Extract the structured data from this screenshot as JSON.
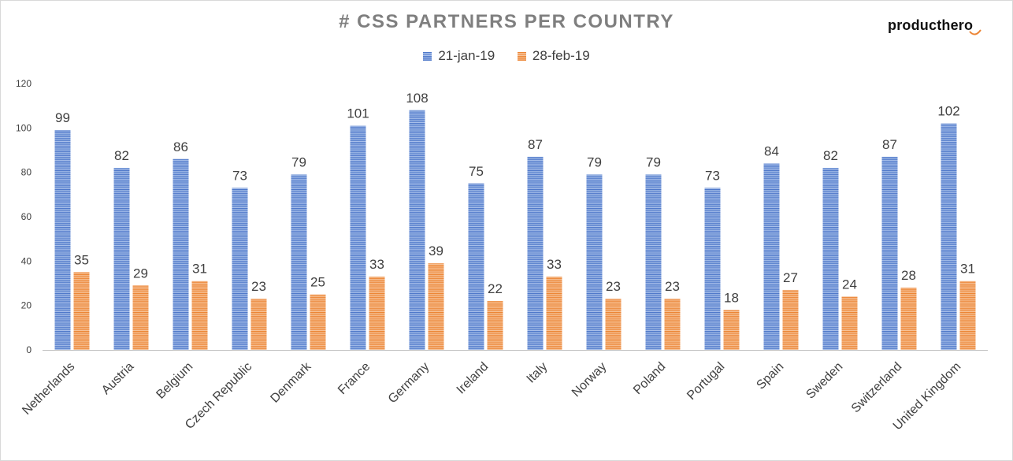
{
  "chart_data": {
    "type": "bar",
    "title": "# CSS PARTNERS PER COUNTRY",
    "brand": "producthero",
    "xlabel": "",
    "ylabel": "",
    "ylim": [
      0,
      120
    ],
    "yticks": [
      0,
      20,
      40,
      60,
      80,
      100,
      120
    ],
    "grid": false,
    "legend_position": "top-center",
    "categories": [
      "Netherlands",
      "Austria",
      "Belgium",
      "Czech Republic",
      "Denmark",
      "France",
      "Germany",
      "Ireland",
      "Italy",
      "Norway",
      "Poland",
      "Portugal",
      "Spain",
      "Sweden",
      "Switzerland",
      "United Kingdom"
    ],
    "series": [
      {
        "name": "21-jan-19",
        "color": "#4e78c9",
        "values": [
          99,
          82,
          86,
          73,
          79,
          101,
          108,
          75,
          87,
          79,
          79,
          73,
          84,
          82,
          87,
          102
        ]
      },
      {
        "name": "28-feb-19",
        "color": "#ec8535",
        "values": [
          35,
          29,
          31,
          23,
          25,
          33,
          39,
          22,
          33,
          23,
          23,
          18,
          27,
          24,
          28,
          31
        ]
      }
    ]
  }
}
